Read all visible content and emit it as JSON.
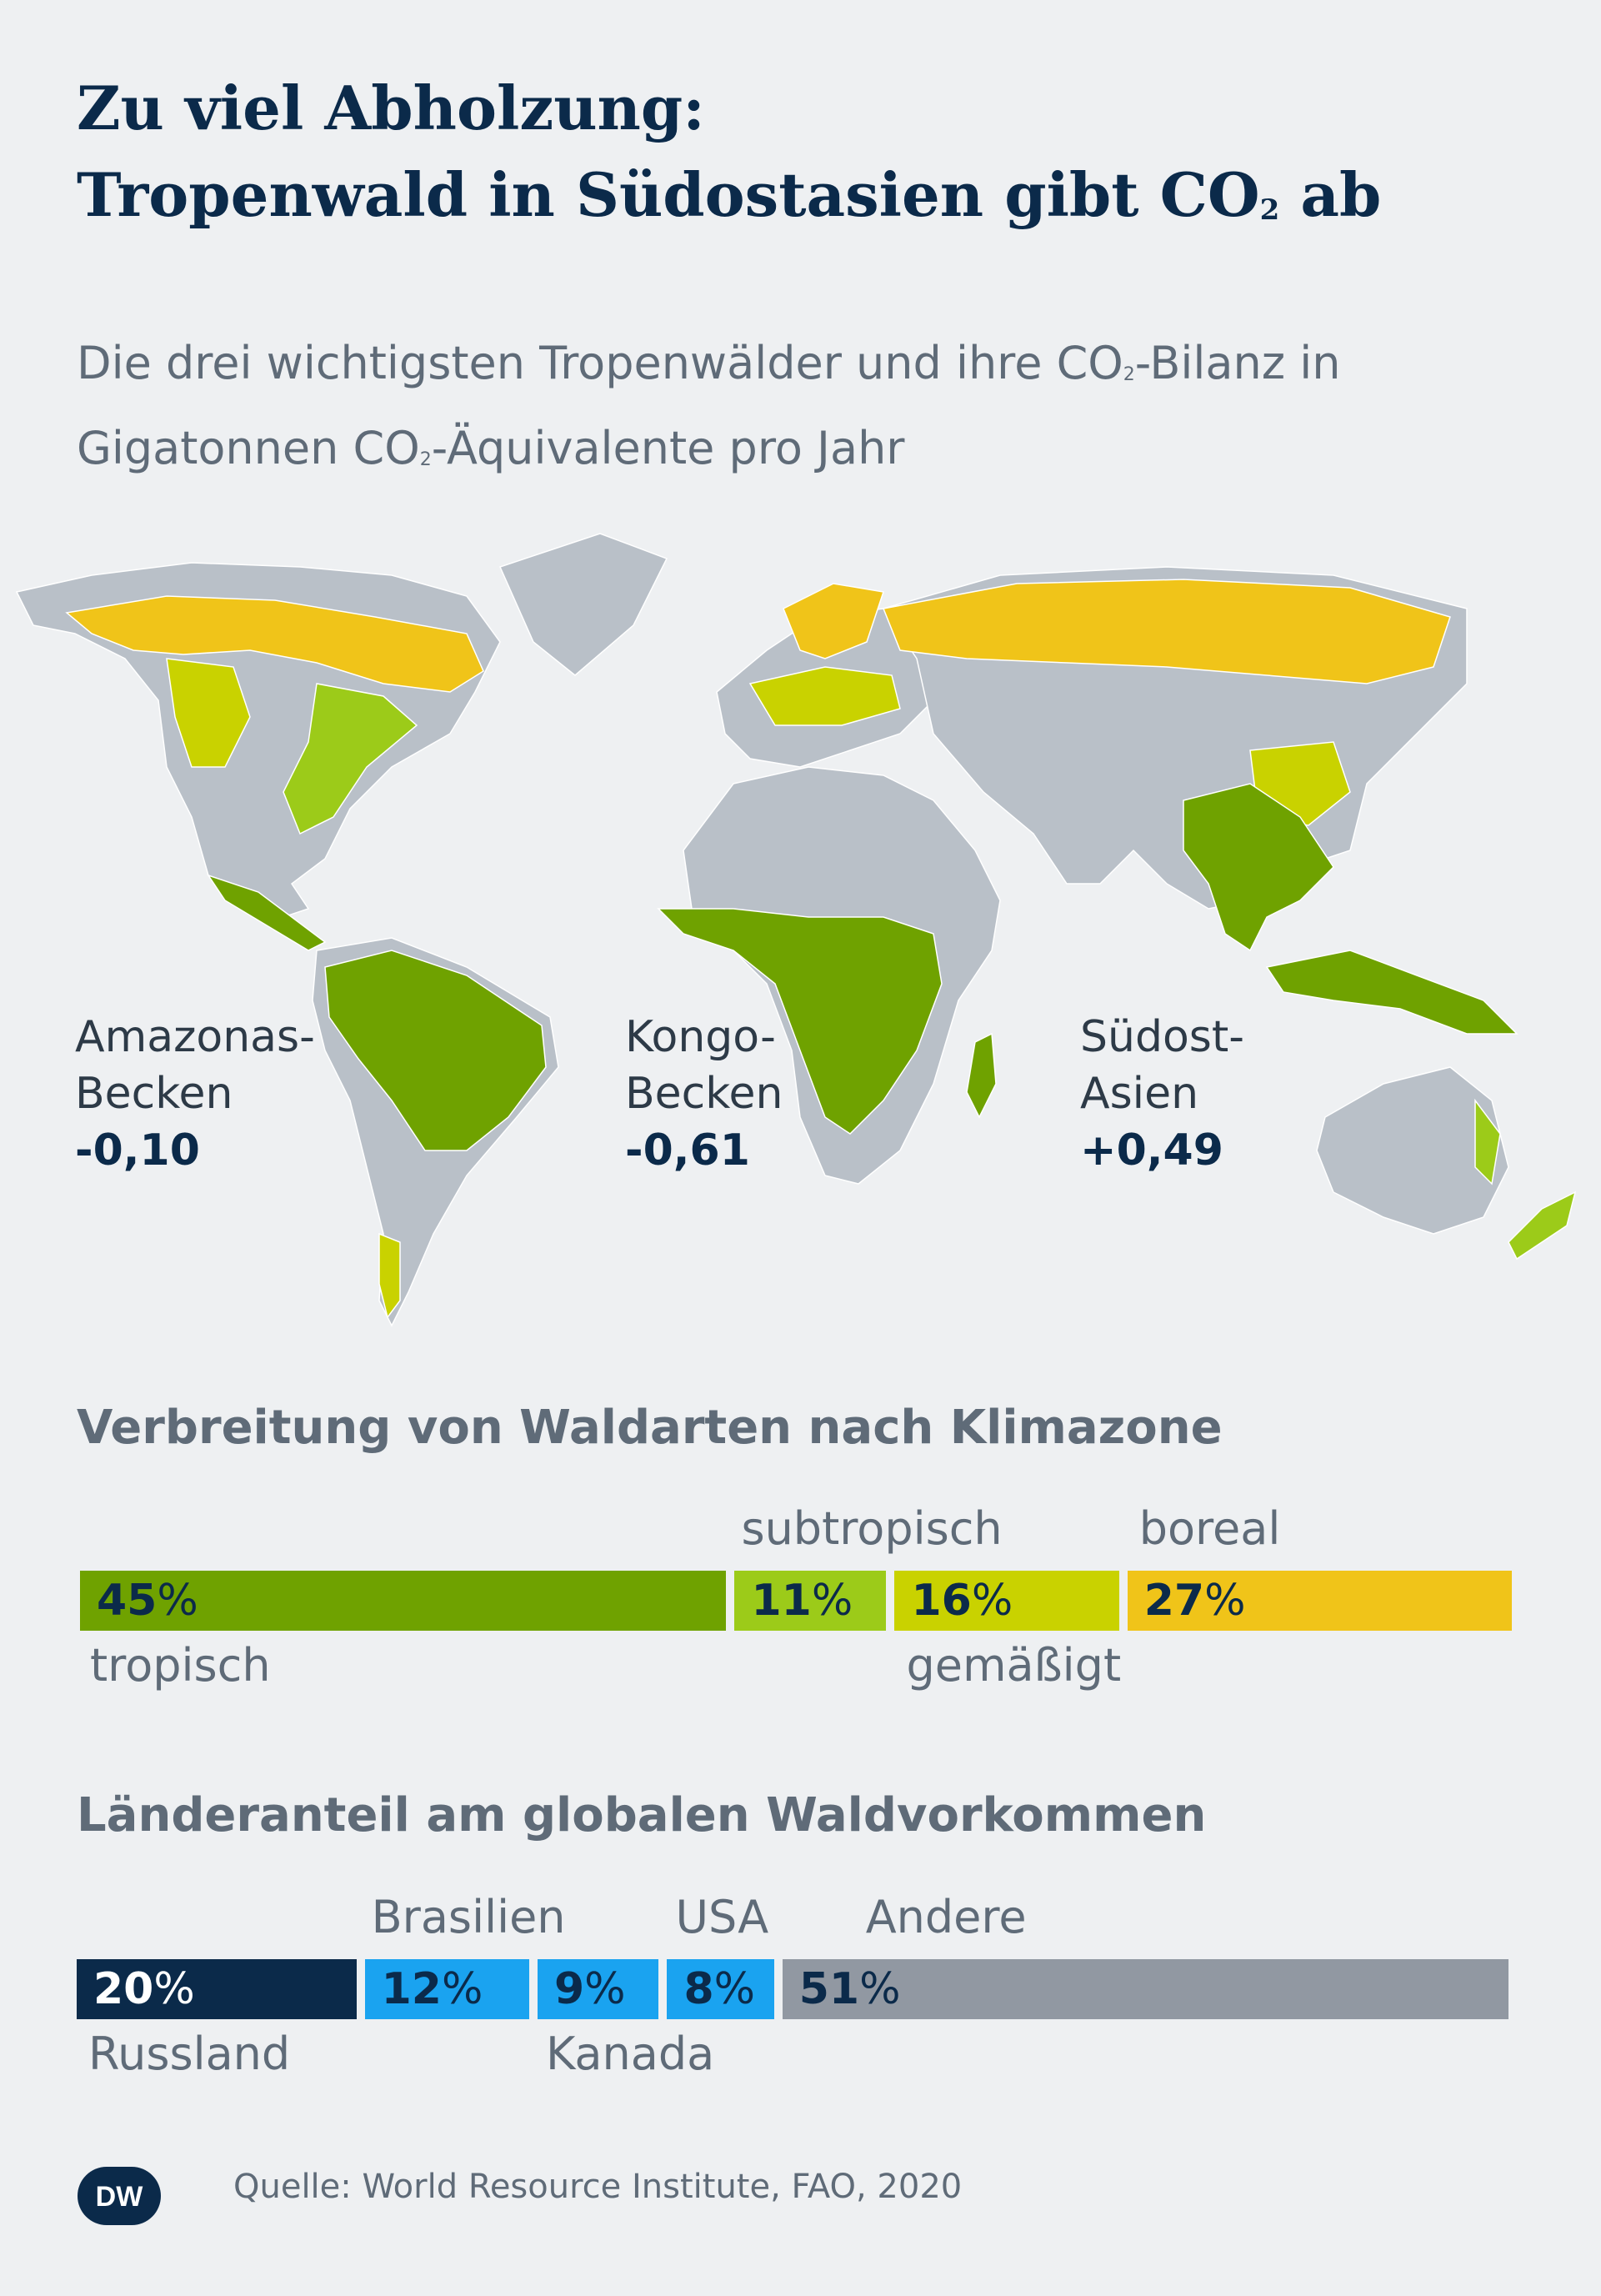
{
  "header": {
    "title_line1": "Zu viel Abholzung:",
    "title_line2_a": "Tropenwald in Südostasien gibt CO",
    "title_line2_sub": "2",
    "title_line2_b": " ab",
    "subtitle_line1_a": "Die drei wichtigsten Tropenwälder und ihre CO",
    "subtitle_line1_sub": "2",
    "subtitle_line1_b": "-Bilanz in",
    "subtitle_line2_a": "Gigatonnen CO",
    "subtitle_line2_sub": "2",
    "subtitle_line2_b": "-Äquivalente pro Jahr"
  },
  "map": {
    "colors": {
      "land": "#b9c0c8",
      "tropical": "#6fa200",
      "subtropical": "#9ccb19",
      "temperate": "#c9d200",
      "boreal": "#f0c419",
      "background": "#eef0f2"
    },
    "regions": [
      {
        "name_line1": "Amazonas-",
        "name_line2": "Becken",
        "value": "-0,10"
      },
      {
        "name_line1": "Kongo-",
        "name_line2": "Becken",
        "value": "-0,61"
      },
      {
        "name_line1": "Südost-",
        "name_line2": "Asien",
        "value": "+0,49"
      }
    ]
  },
  "chart_data": [
    {
      "type": "bar",
      "orientation": "horizontal-stacked",
      "title": "Verbreitung von Waldarten nach Klimazone",
      "unit": "%",
      "categories": [
        "tropisch",
        "subtropisch",
        "gemäßigt",
        "boreal"
      ],
      "values": [
        45,
        11,
        16,
        27
      ],
      "colors": [
        "#6fa200",
        "#9ccb19",
        "#c9d200",
        "#f0c419"
      ]
    },
    {
      "type": "bar",
      "orientation": "horizontal-stacked",
      "title": "Länderanteil am globalen Waldvorkommen",
      "unit": "%",
      "categories": [
        "Russland",
        "Brasilien",
        "Kanada",
        "USA",
        "Andere"
      ],
      "values": [
        20,
        12,
        9,
        8,
        51
      ],
      "colors": [
        "#0b2a4a",
        "#1aa3f0",
        "#1aa3f0",
        "#1aa3f0",
        "#9198a2"
      ]
    }
  ],
  "footer": {
    "logo": "DW",
    "source": "Quelle: World Resource Institute, FAO, 2020"
  }
}
